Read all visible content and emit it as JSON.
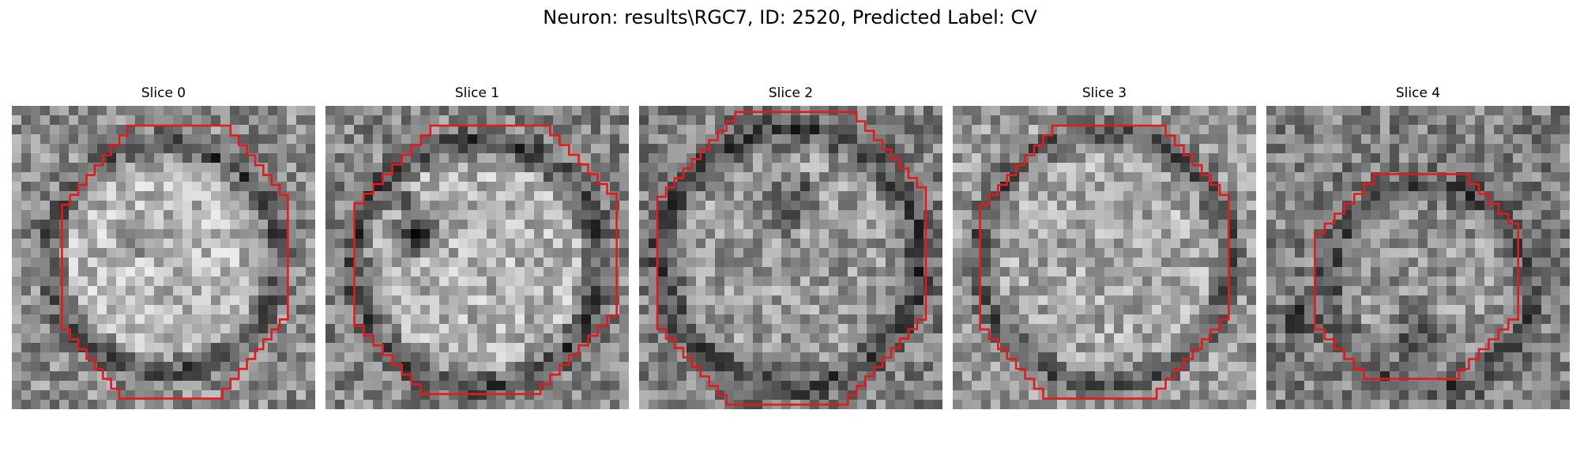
{
  "figure": {
    "title": "Neuron: results\\RGC7, ID: 2520, Predicted Label: CV",
    "contour_color": "#e31a1c",
    "colormap": "gray"
  },
  "slices": [
    {
      "label": "Slice 0"
    },
    {
      "label": "Slice 1"
    },
    {
      "label": "Slice 2"
    },
    {
      "label": "Slice 3"
    },
    {
      "label": "Slice 4"
    }
  ]
}
